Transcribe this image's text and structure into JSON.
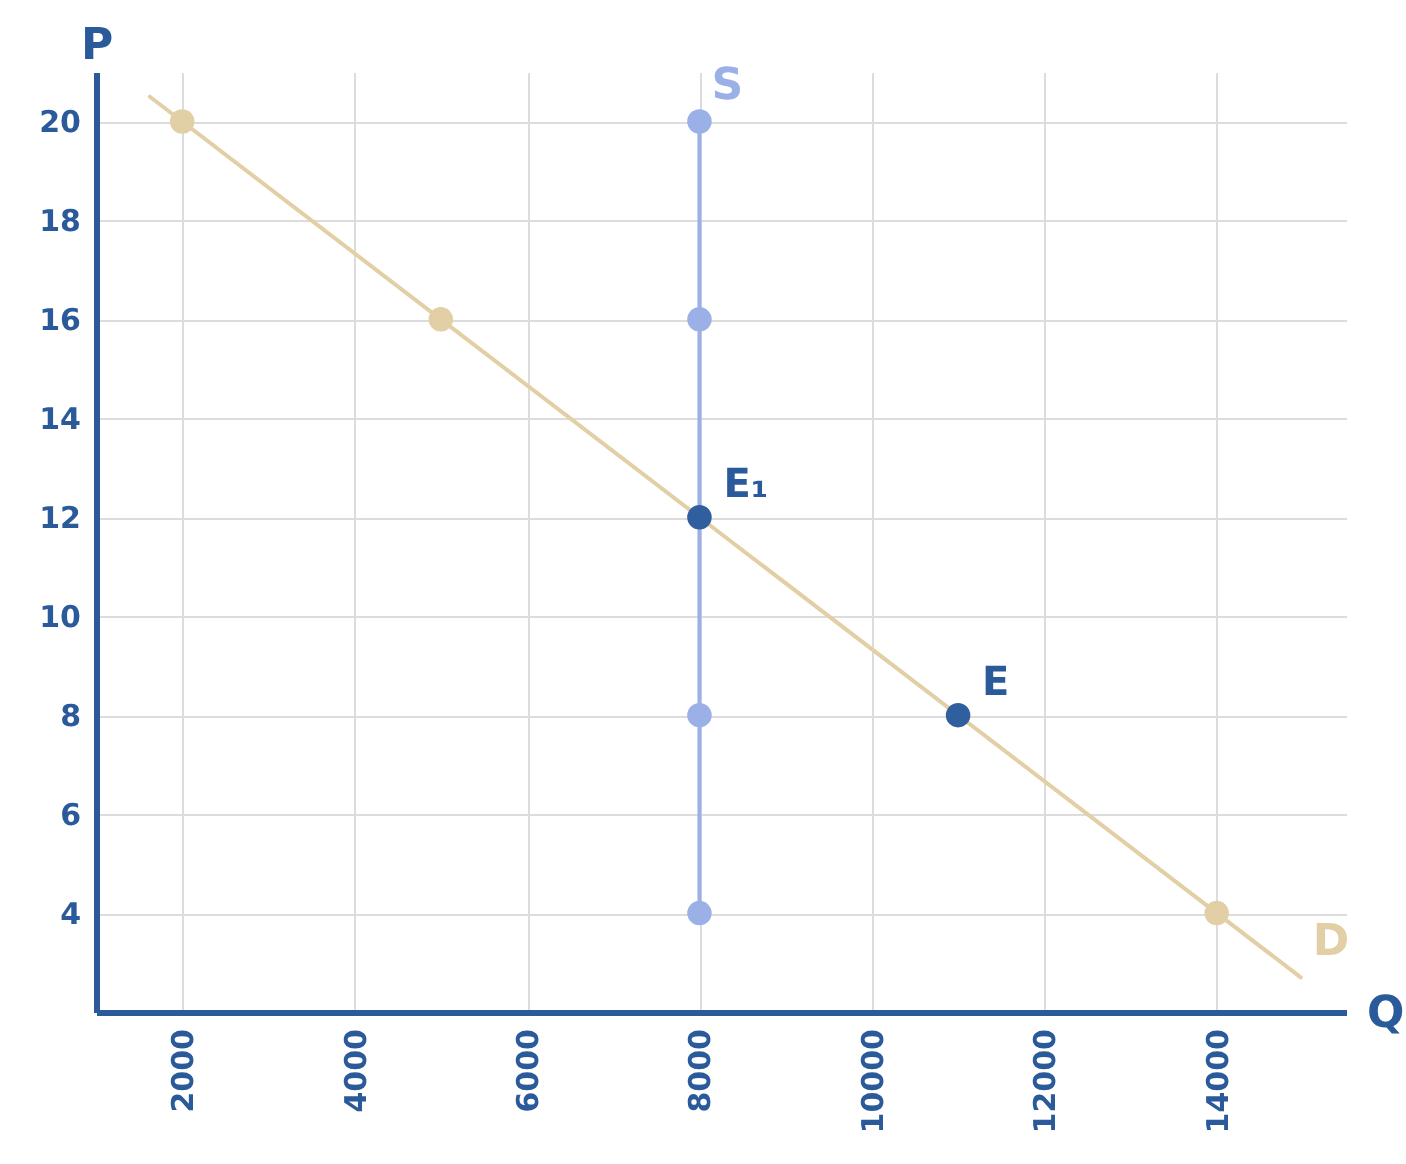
{
  "chart_data": {
    "type": "line",
    "xlabel": "Q",
    "ylabel": "P",
    "xlim": [
      1000,
      15500
    ],
    "ylim": [
      2,
      21
    ],
    "xticks": [
      2000,
      4000,
      6000,
      8000,
      10000,
      12000,
      14000
    ],
    "yticks": [
      4,
      6,
      8,
      10,
      12,
      14,
      16,
      18,
      20
    ],
    "grid": true,
    "marker": "circle",
    "series": [
      {
        "name": "D",
        "marker": "none",
        "color": "#e2cfa6",
        "x": [
          1625,
          2000,
          5000,
          8000,
          11000,
          14975
        ],
        "values": [
          20.5,
          20,
          16,
          12,
          8,
          2.7
        ]
      },
      {
        "name": "S",
        "marker": "none",
        "color": "#9bb0e6",
        "x": [
          8000,
          8000
        ],
        "values": [
          4,
          20
        ]
      },
      {
        "type": "scatter",
        "color": "#e2cfa6",
        "x": [
          2000,
          5000,
          14000
        ],
        "values": [
          20,
          16,
          4
        ]
      },
      {
        "type": "scatter",
        "color": "#9bb0e6",
        "x": [
          8000,
          8000,
          8000,
          8000
        ],
        "values": [
          20,
          16,
          8,
          4
        ]
      },
      {
        "type": "scatter",
        "color": "#2f5f9e",
        "x": [
          8000,
          11000
        ],
        "values": [
          12,
          8
        ]
      }
    ],
    "annotations": [
      {
        "text": "E₁",
        "x": 8000,
        "y": 12
      },
      {
        "text": "E",
        "x": 11000,
        "y": 8
      }
    ]
  }
}
